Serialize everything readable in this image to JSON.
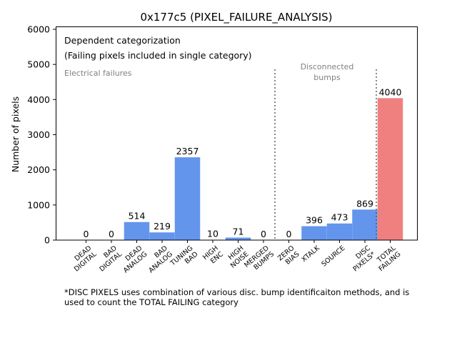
{
  "chart_data": {
    "type": "bar",
    "title": "0x177c5 (PIXEL_FAILURE_ANALYSIS)",
    "ylabel": "Number of pixels",
    "ylim": [
      0,
      6000
    ],
    "yticks": [
      0,
      1000,
      2000,
      3000,
      4000,
      5000,
      6000
    ],
    "grid": false,
    "categories": [
      [
        "DEAD",
        "DIGITAL"
      ],
      [
        "BAD",
        "DIGITAL"
      ],
      [
        "DEAD",
        "ANALOG"
      ],
      [
        "BAD",
        "ANALOG"
      ],
      [
        "TUNING",
        "BAD"
      ],
      [
        "HIGH",
        "ENC"
      ],
      [
        "HIGH",
        "NOISE"
      ],
      [
        "MERGED",
        "BUMPS"
      ],
      [
        "ZERO",
        "BIAS"
      ],
      [
        "XTALK"
      ],
      [
        "SOURCE"
      ],
      [
        "DISC",
        "PIXELS*"
      ],
      [
        "TOTAL",
        "FAILING"
      ]
    ],
    "values": [
      0,
      0,
      514,
      219,
      2357,
      10,
      71,
      0,
      0,
      396,
      473,
      869,
      4040
    ],
    "bar_colors": [
      "#6495ed",
      "#6495ed",
      "#6495ed",
      "#6495ed",
      "#6495ed",
      "#6495ed",
      "#6495ed",
      "#6495ed",
      "#6495ed",
      "#6495ed",
      "#6495ed",
      "#6495ed",
      "#f08080"
    ],
    "annotations": {
      "line1": "Dependent categorization",
      "line2": "(Failing pixels included in single category)",
      "electrical": "Electrical failures",
      "disconnected_1": "Disconnected",
      "disconnected_2": "bumps"
    },
    "footnote_1": "*DISC PIXELS uses combination of various disc. bump identificaiton methods, and is",
    "footnote_2": "used to count the TOTAL FAILING category"
  }
}
